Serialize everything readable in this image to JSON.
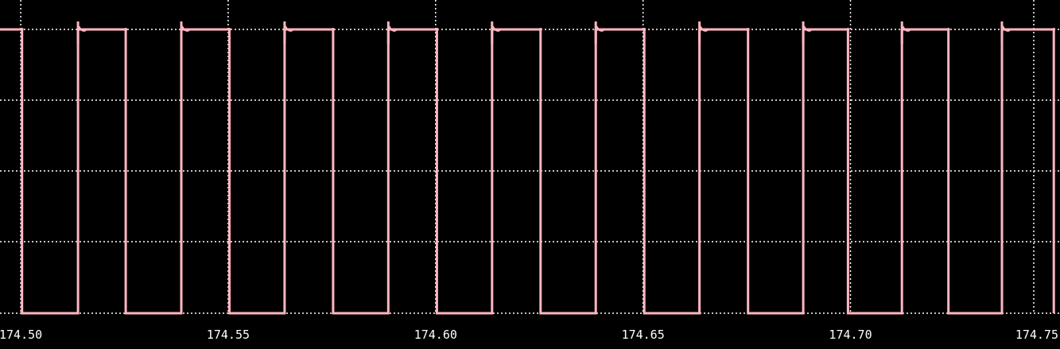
{
  "chart_data": {
    "type": "line",
    "title": "",
    "xlabel": "",
    "ylabel": "",
    "xlim": [
      174.495,
      174.7505
    ],
    "ylim": [
      0,
      1
    ],
    "x_ticks": [
      "174.50",
      "174.55",
      "174.60",
      "174.65",
      "174.70",
      "174.75"
    ],
    "x_tick_values": [
      174.5,
      174.55,
      174.6,
      174.65,
      174.7,
      174.75
    ],
    "grid": true,
    "colors": {
      "background": "#000000",
      "grid": "#ffffff",
      "trace": "#ffb6c1",
      "label": "#ffffff"
    },
    "series": [
      {
        "high_level": 1,
        "low_level": 0,
        "pulses": [
          {
            "rise": 174.495,
            "fall": 174.5003
          },
          {
            "rise": 174.5138,
            "fall": 174.5253
          },
          {
            "rise": 174.5387,
            "fall": 174.5503
          },
          {
            "rise": 174.5636,
            "fall": 174.5753
          },
          {
            "rise": 174.5886,
            "fall": 174.6003
          },
          {
            "rise": 174.6136,
            "fall": 174.6253
          },
          {
            "rise": 174.6386,
            "fall": 174.6503
          },
          {
            "rise": 174.6636,
            "fall": 174.6753
          },
          {
            "rise": 174.6886,
            "fall": 174.6994
          },
          {
            "rise": 174.7124,
            "fall": 174.7236
          },
          {
            "rise": 174.7365,
            "fall": 174.749
          }
        ]
      }
    ]
  }
}
